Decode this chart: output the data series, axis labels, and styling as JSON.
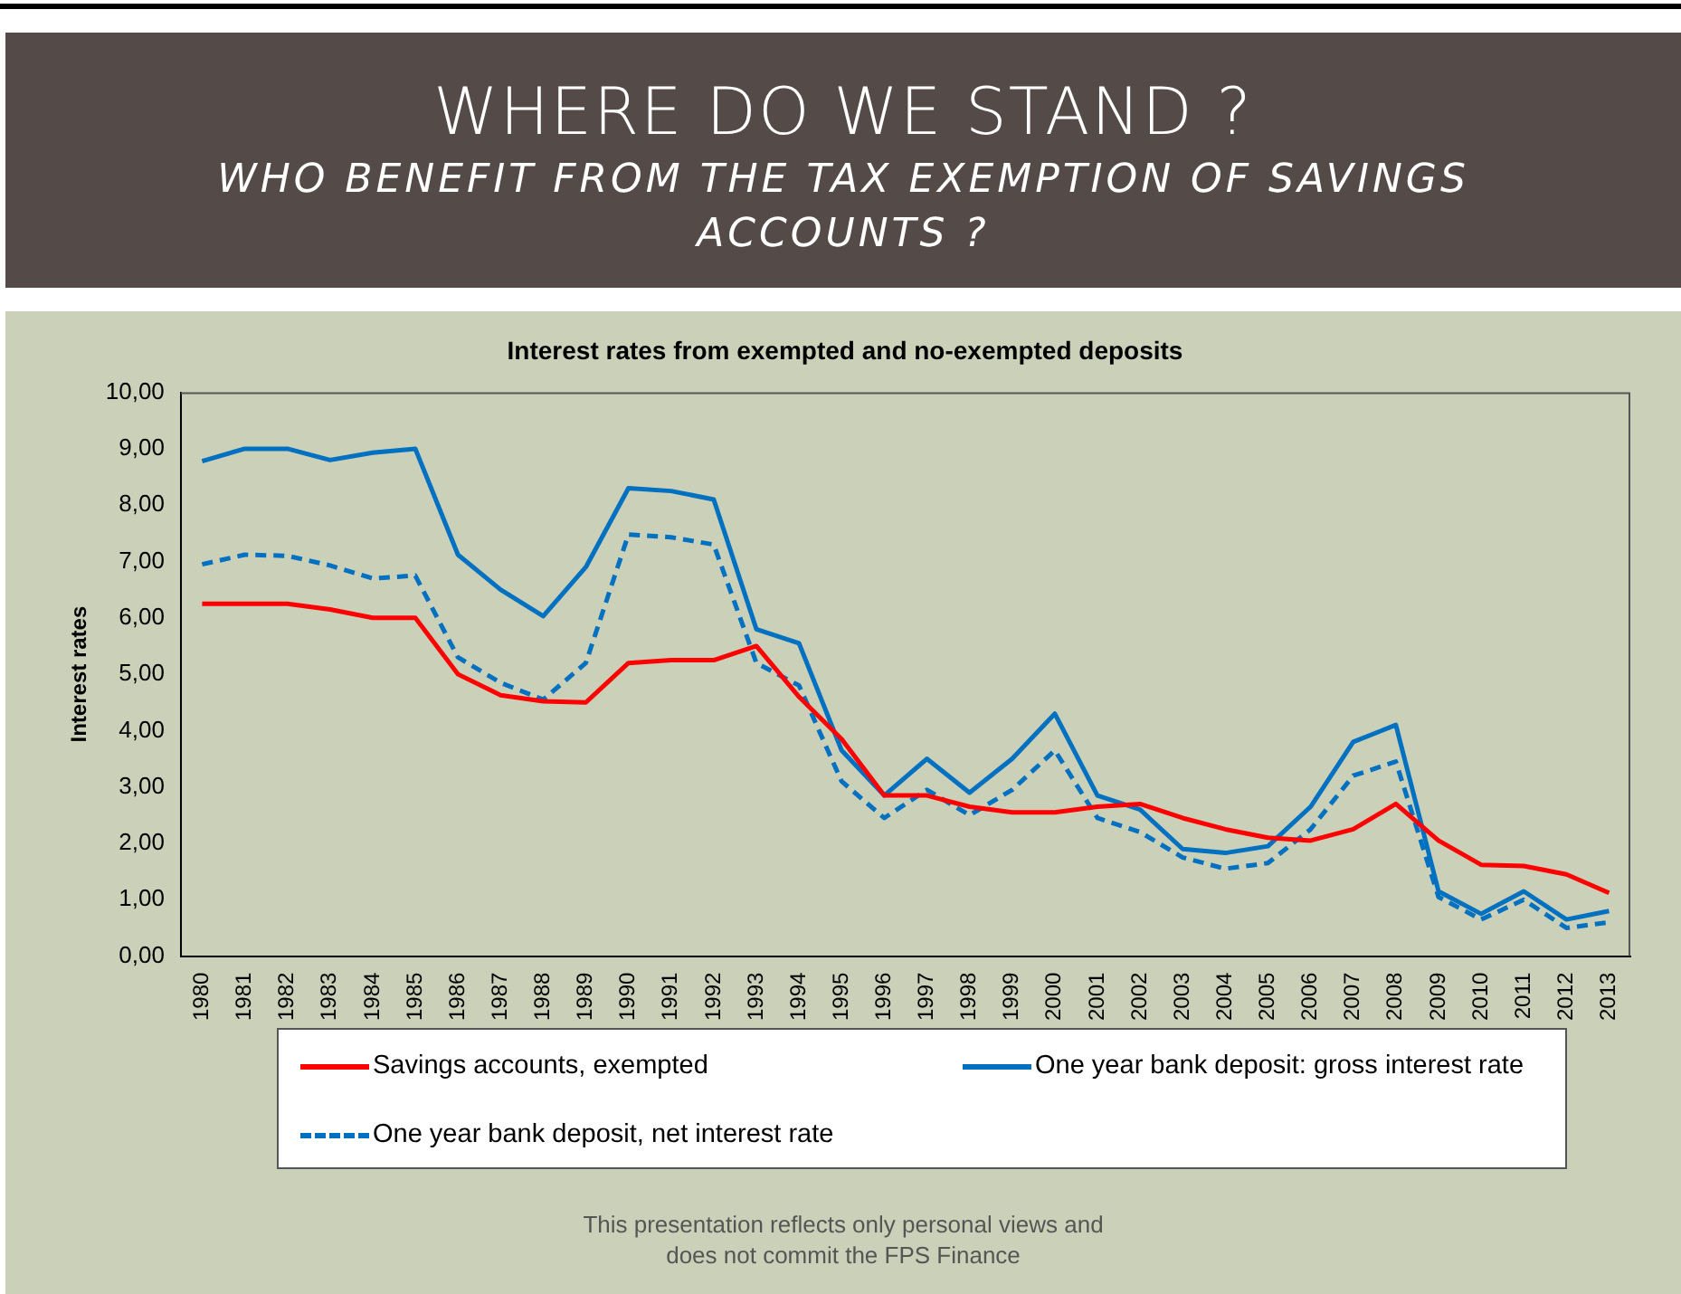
{
  "chart_data": {
    "type": "line",
    "title": "Interest rates from exempted and no-exempted deposits",
    "ylabel": "Interest rates",
    "annotations": [
      "WHERE DO WE STAND ?",
      "WHO BENEFIT FROM THE TAX EXEMPTION OF SAVINGS ACCOUNTS ?",
      "This presentation reflects only personal views and does not commit the FPS Finance"
    ],
    "categories": [
      "1980",
      "1981",
      "1982",
      "1983",
      "1984",
      "1985",
      "1986",
      "1987",
      "1988",
      "1989",
      "1990",
      "1991",
      "1992",
      "1993",
      "1994",
      "1995",
      "1996",
      "1997",
      "1998",
      "1999",
      "2000",
      "2001",
      "2002",
      "2003",
      "2004",
      "2005",
      "2006",
      "2007",
      "2008",
      "2009",
      "2010",
      "2011",
      "2012",
      "2013"
    ],
    "series": [
      {
        "name": "Savings accounts, exempted",
        "color": "#ff0000",
        "line_style": "solid",
        "values": [
          6.25,
          6.25,
          6.25,
          6.15,
          6.0,
          6.0,
          5.0,
          4.63,
          4.52,
          4.5,
          5.2,
          5.25,
          5.25,
          5.5,
          4.6,
          3.85,
          2.85,
          2.85,
          2.65,
          2.55,
          2.55,
          2.65,
          2.7,
          2.45,
          2.25,
          2.1,
          2.05,
          2.25,
          2.7,
          2.05,
          1.62,
          1.6,
          1.45,
          1.12
        ]
      },
      {
        "name": "One year bank deposit: gross interest rate",
        "color": "#0070c0",
        "line_style": "solid",
        "values": [
          8.78,
          9.0,
          9.0,
          8.8,
          8.93,
          9.0,
          7.12,
          6.5,
          6.03,
          6.9,
          8.3,
          8.25,
          8.1,
          5.8,
          5.55,
          3.65,
          2.85,
          3.5,
          2.9,
          3.5,
          4.3,
          2.85,
          2.6,
          1.9,
          1.83,
          1.95,
          2.65,
          3.8,
          4.1,
          1.15,
          0.75,
          1.15,
          0.65,
          0.8
        ]
      },
      {
        "name": "One year bank deposit, net interest rate",
        "color": "#0070c0",
        "line_style": "dashed",
        "values": [
          6.95,
          7.12,
          7.1,
          6.93,
          6.7,
          6.75,
          5.3,
          4.85,
          4.55,
          5.2,
          7.48,
          7.43,
          7.3,
          5.2,
          4.8,
          3.1,
          2.45,
          2.95,
          2.5,
          2.95,
          3.65,
          2.45,
          2.2,
          1.75,
          1.55,
          1.65,
          2.25,
          3.2,
          3.45,
          1.05,
          0.65,
          1.0,
          0.5,
          0.6
        ]
      }
    ],
    "ylim": [
      0,
      10
    ],
    "yticks": [
      {
        "value": 0,
        "label": "0,00"
      },
      {
        "value": 1,
        "label": "1,00"
      },
      {
        "value": 2,
        "label": "2,00"
      },
      {
        "value": 3,
        "label": "3,00"
      },
      {
        "value": 4,
        "label": "4,00"
      },
      {
        "value": 5,
        "label": "5,00"
      },
      {
        "value": 6,
        "label": "6,00"
      },
      {
        "value": 7,
        "label": "7,00"
      },
      {
        "value": 8,
        "label": "8,00"
      },
      {
        "value": 9,
        "label": "9,00"
      },
      {
        "value": 10,
        "label": "10,00"
      }
    ],
    "grid": false,
    "legend": "bottom",
    "marker": "none"
  }
}
